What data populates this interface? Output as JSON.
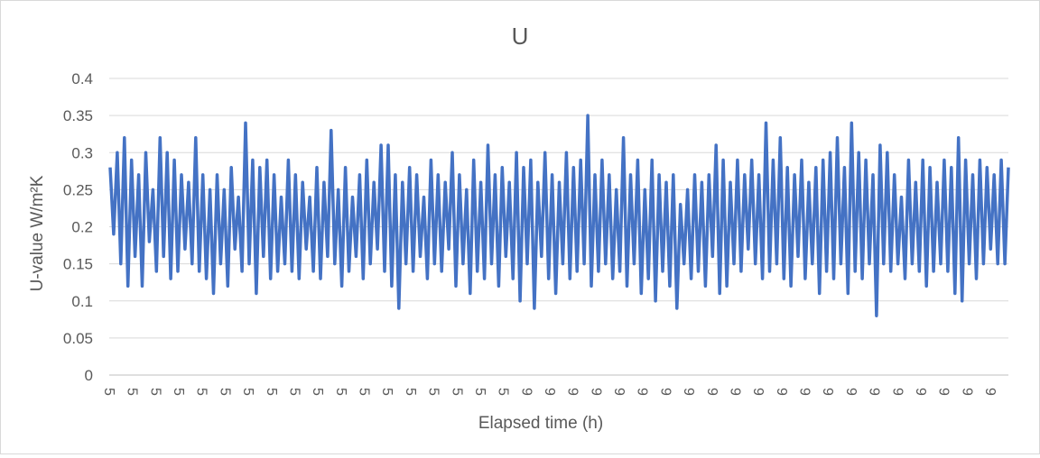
{
  "chart_data": {
    "type": "line",
    "title": "U",
    "xlabel": "Elapsed time (h)",
    "ylabel": "U-value W/m²K",
    "ylim": [
      0,
      0.4
    ],
    "yticks": [
      "0",
      "0.05",
      "0.1",
      "0.15",
      "0.2",
      "0.25",
      "0.3",
      "0.35",
      "0.4"
    ],
    "yticks_values": [
      0,
      0.05,
      0.1,
      0.15,
      0.2,
      0.25,
      0.3,
      0.35,
      0.4
    ],
    "xtick_labels": [
      "5",
      "5",
      "5",
      "5",
      "5",
      "5",
      "5",
      "5",
      "5",
      "5",
      "5",
      "5",
      "5",
      "5",
      "5",
      "5",
      "5",
      "5",
      "9",
      "9",
      "9",
      "9",
      "9",
      "9",
      "9",
      "9",
      "9",
      "9",
      "9",
      "9",
      "9",
      "9",
      "9",
      "9",
      "9",
      "9",
      "9",
      "9",
      "9"
    ],
    "grid": true,
    "legend": "none",
    "series": [
      {
        "color": "#4472c4",
        "mean": 0.21,
        "min": 0.083,
        "max": 0.35,
        "values": [
          0.28,
          0.19,
          0.3,
          0.15,
          0.32,
          0.12,
          0.29,
          0.16,
          0.27,
          0.12,
          0.3,
          0.18,
          0.25,
          0.14,
          0.32,
          0.16,
          0.3,
          0.13,
          0.29,
          0.14,
          0.27,
          0.17,
          0.26,
          0.15,
          0.32,
          0.14,
          0.27,
          0.13,
          0.25,
          0.11,
          0.27,
          0.15,
          0.25,
          0.12,
          0.28,
          0.17,
          0.24,
          0.14,
          0.34,
          0.15,
          0.29,
          0.11,
          0.28,
          0.16,
          0.29,
          0.13,
          0.27,
          0.14,
          0.24,
          0.15,
          0.29,
          0.14,
          0.27,
          0.13,
          0.26,
          0.17,
          0.24,
          0.14,
          0.28,
          0.13,
          0.26,
          0.16,
          0.33,
          0.15,
          0.25,
          0.12,
          0.28,
          0.14,
          0.24,
          0.16,
          0.27,
          0.13,
          0.29,
          0.15,
          0.26,
          0.17,
          0.31,
          0.14,
          0.31,
          0.12,
          0.27,
          0.09,
          0.26,
          0.15,
          0.28,
          0.14,
          0.27,
          0.16,
          0.24,
          0.13,
          0.29,
          0.15,
          0.27,
          0.14,
          0.26,
          0.17,
          0.3,
          0.12,
          0.27,
          0.15,
          0.25,
          0.11,
          0.29,
          0.14,
          0.26,
          0.13,
          0.31,
          0.15,
          0.27,
          0.12,
          0.28,
          0.16,
          0.26,
          0.13,
          0.3,
          0.1,
          0.28,
          0.15,
          0.29,
          0.09,
          0.26,
          0.16,
          0.3,
          0.13,
          0.27,
          0.11,
          0.26,
          0.15,
          0.3,
          0.13,
          0.28,
          0.14,
          0.29,
          0.15,
          0.35,
          0.12,
          0.27,
          0.14,
          0.29,
          0.15,
          0.27,
          0.13,
          0.25,
          0.14,
          0.32,
          0.12,
          0.27,
          0.15,
          0.29,
          0.11,
          0.25,
          0.13,
          0.29,
          0.1,
          0.27,
          0.14,
          0.26,
          0.12,
          0.27,
          0.09,
          0.23,
          0.15,
          0.25,
          0.13,
          0.27,
          0.14,
          0.26,
          0.12,
          0.27,
          0.16,
          0.31,
          0.11,
          0.29,
          0.12,
          0.26,
          0.15,
          0.29,
          0.14,
          0.27,
          0.17,
          0.29,
          0.15,
          0.27,
          0.13,
          0.34,
          0.14,
          0.29,
          0.15,
          0.32,
          0.13,
          0.28,
          0.12,
          0.27,
          0.16,
          0.29,
          0.13,
          0.26,
          0.15,
          0.28,
          0.11,
          0.29,
          0.14,
          0.3,
          0.13,
          0.32,
          0.15,
          0.28,
          0.11,
          0.34,
          0.14,
          0.3,
          0.13,
          0.29,
          0.15,
          0.27,
          0.08,
          0.31,
          0.15,
          0.3,
          0.14,
          0.27,
          0.15,
          0.24,
          0.13,
          0.29,
          0.15,
          0.26,
          0.14,
          0.29,
          0.12,
          0.28,
          0.14,
          0.26,
          0.15,
          0.29,
          0.14,
          0.28,
          0.11,
          0.32,
          0.1,
          0.29,
          0.15,
          0.27,
          0.13,
          0.29,
          0.15,
          0.28,
          0.17,
          0.27,
          0.15,
          0.29,
          0.15,
          0.28
        ]
      }
    ]
  }
}
